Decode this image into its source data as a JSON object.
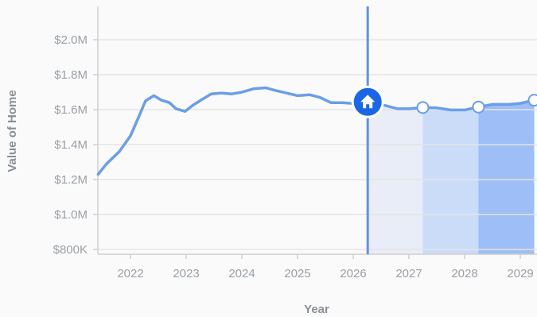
{
  "chart_data": {
    "type": "line",
    "xlabel": "Year",
    "ylabel": "Value of Home",
    "x_ticks": [
      {
        "label": "2022",
        "x": 2022.0
      },
      {
        "label": "2023",
        "x": 2023.0
      },
      {
        "label": "2024",
        "x": 2024.0
      },
      {
        "label": "2025",
        "x": 2025.0
      },
      {
        "label": "2026",
        "x": 2026.0
      },
      {
        "label": "2027",
        "x": 2027.0
      },
      {
        "label": "2028",
        "x": 2028.0
      },
      {
        "label": "2029",
        "x": 2029.0
      }
    ],
    "y_ticks": [
      {
        "label": "$800K",
        "value": 800000
      },
      {
        "label": "$1.0M",
        "value": 1000000
      },
      {
        "label": "$1.2M",
        "value": 1200000
      },
      {
        "label": "$1.4M",
        "value": 1400000
      },
      {
        "label": "$1.6M",
        "value": 1600000
      },
      {
        "label": "$1.8M",
        "value": 1800000
      },
      {
        "label": "$2.0M",
        "value": 2000000
      }
    ],
    "xlim": [
      2021.42,
      2029.25
    ],
    "ylim": [
      780000,
      2170000
    ],
    "grid": "horizontal",
    "series": [
      {
        "points": [
          [
            2021.42,
            1230000
          ],
          [
            2021.57,
            1290000
          ],
          [
            2021.8,
            1360000
          ],
          [
            2022.0,
            1450000
          ],
          [
            2022.15,
            1560000
          ],
          [
            2022.27,
            1650000
          ],
          [
            2022.42,
            1680000
          ],
          [
            2022.55,
            1655000
          ],
          [
            2022.7,
            1640000
          ],
          [
            2022.82,
            1605000
          ],
          [
            2022.98,
            1590000
          ],
          [
            2023.12,
            1625000
          ],
          [
            2023.27,
            1655000
          ],
          [
            2023.45,
            1690000
          ],
          [
            2023.63,
            1695000
          ],
          [
            2023.82,
            1690000
          ],
          [
            2024.0,
            1700000
          ],
          [
            2024.22,
            1720000
          ],
          [
            2024.43,
            1725000
          ],
          [
            2024.6,
            1710000
          ],
          [
            2024.8,
            1695000
          ],
          [
            2025.0,
            1680000
          ],
          [
            2025.22,
            1685000
          ],
          [
            2025.4,
            1670000
          ],
          [
            2025.6,
            1640000
          ],
          [
            2025.8,
            1640000
          ],
          [
            2026.0,
            1635000
          ],
          [
            2026.25,
            1640000
          ],
          [
            2026.5,
            1630000
          ],
          [
            2026.8,
            1605000
          ],
          [
            2027.0,
            1605000
          ],
          [
            2027.25,
            1612000
          ],
          [
            2027.5,
            1610000
          ],
          [
            2027.75,
            1598000
          ],
          [
            2028.0,
            1598000
          ],
          [
            2028.25,
            1615000
          ],
          [
            2028.5,
            1630000
          ],
          [
            2028.8,
            1630000
          ],
          [
            2029.0,
            1636000
          ],
          [
            2029.25,
            1654000
          ]
        ],
        "color": "#6a9eea"
      }
    ],
    "current_marker": {
      "x": 2026.26,
      "y": 1640000,
      "icon": "home-icon"
    },
    "forecast_points": [
      {
        "x": 2027.25,
        "y": 1612000
      },
      {
        "x": 2028.25,
        "y": 1615000
      },
      {
        "x": 2029.25,
        "y": 1654000
      }
    ],
    "forecast_bands": [
      {
        "from": 2026.26,
        "to": 2027.25,
        "color": "#e8edf7"
      },
      {
        "from": 2027.25,
        "to": 2028.25,
        "color": "#cbdcf8"
      },
      {
        "from": 2028.25,
        "to": 2029.25,
        "color": "#9dbef7"
      }
    ],
    "colors": {
      "line": "#6a9eea",
      "cursor": "#5c93ef",
      "marker": "#1a66e8",
      "grid": "#e4e4e4",
      "axis": "#cfcfcf"
    }
  }
}
